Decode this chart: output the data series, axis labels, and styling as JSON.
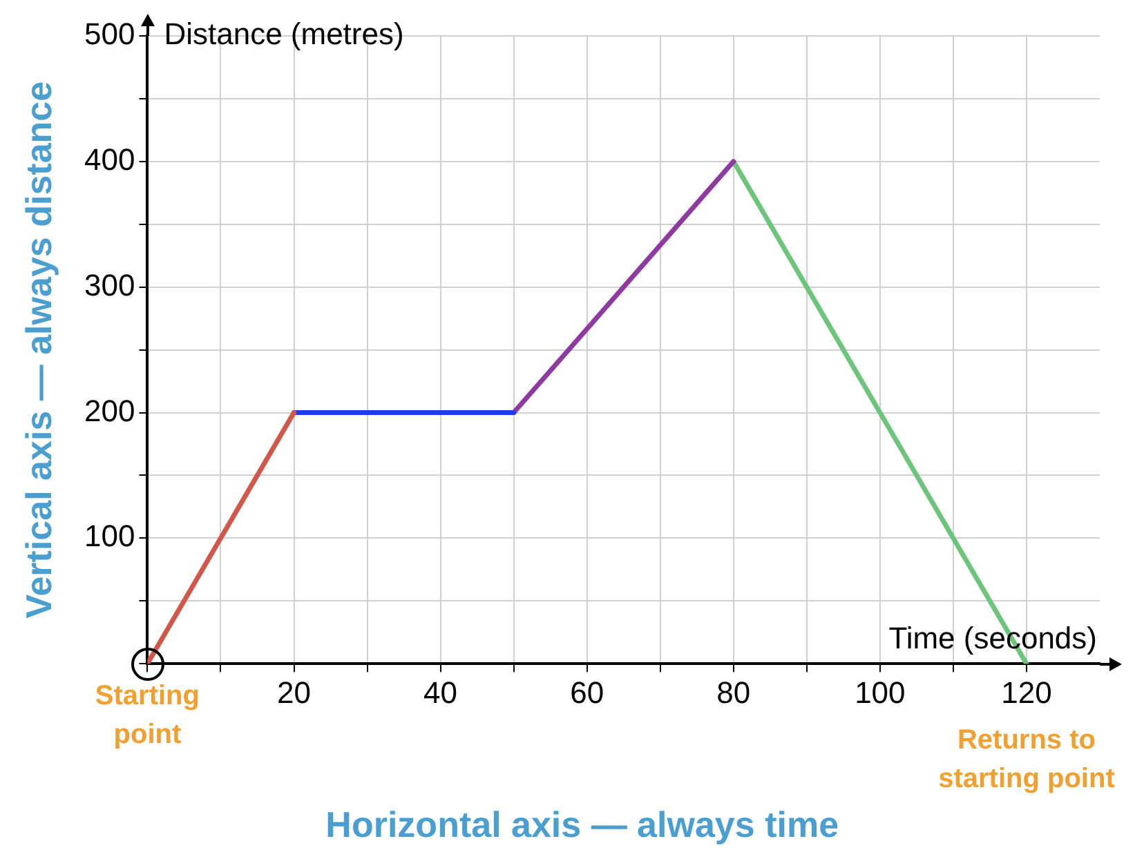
{
  "chart_data": {
    "type": "line",
    "xlabel": "Time (seconds)",
    "ylabel": "Distance (metres)",
    "xlim": [
      0,
      130
    ],
    "ylim": [
      0,
      500
    ],
    "xticks": [
      {
        "value": 0,
        "label": null
      },
      {
        "value": 10,
        "label": null
      },
      20,
      {
        "value": 30,
        "label": null
      },
      40,
      {
        "value": 50,
        "label": null
      },
      60,
      {
        "value": 70,
        "label": null
      },
      80,
      {
        "value": 90,
        "label": null
      },
      100,
      {
        "value": 110,
        "label": null
      },
      120
    ],
    "yticks": [
      {
        "value": 0,
        "label": null
      },
      {
        "value": 50,
        "label": null
      },
      100,
      {
        "value": 150,
        "label": null
      },
      200,
      {
        "value": 250,
        "label": null
      },
      300,
      {
        "value": 350,
        "label": null
      },
      400,
      {
        "value": 450,
        "label": null
      },
      500
    ],
    "grid": true,
    "line_style": "solid",
    "series": [
      {
        "type": "line",
        "color": "#d0574a",
        "x": [
          0,
          20
        ],
        "values": [
          0,
          200
        ]
      },
      {
        "type": "line",
        "color": "#1a3cf5",
        "x": [
          20,
          50
        ],
        "values": [
          200,
          200
        ]
      },
      {
        "type": "line",
        "color": "#8e3aa0",
        "x": [
          50,
          80
        ],
        "values": [
          200,
          400
        ]
      },
      {
        "type": "line",
        "color": "#6cc57a",
        "x": [
          80,
          120
        ],
        "values": [
          400,
          0
        ]
      }
    ],
    "annotations": [
      "Vertical axis — always distance",
      "Horizontal axis — always time",
      {
        "text": "Starting point",
        "x": 0,
        "y": 0
      },
      {
        "text": "Returns to starting point",
        "x": 120,
        "y": 0
      }
    ]
  }
}
